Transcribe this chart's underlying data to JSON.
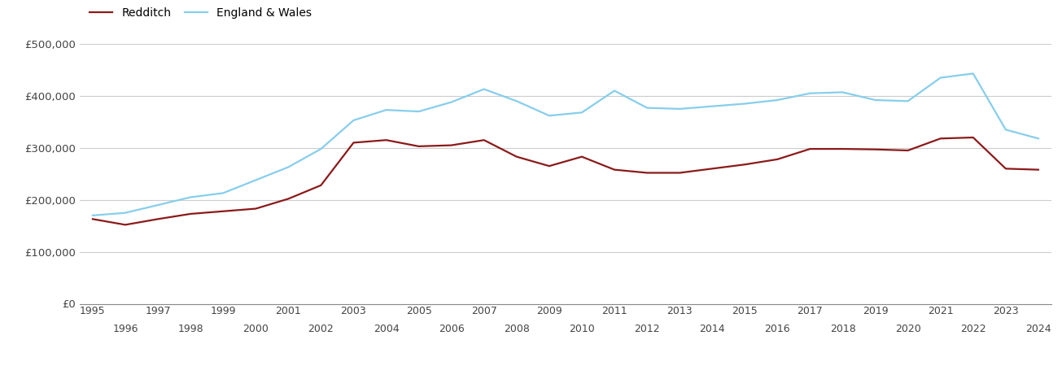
{
  "years": [
    1995,
    1996,
    1997,
    1998,
    1999,
    2000,
    2001,
    2002,
    2003,
    2004,
    2005,
    2006,
    2007,
    2008,
    2009,
    2010,
    2011,
    2012,
    2013,
    2014,
    2015,
    2016,
    2017,
    2018,
    2019,
    2020,
    2021,
    2022,
    2023,
    2024
  ],
  "redditch": [
    163000,
    152000,
    163000,
    173000,
    178000,
    183000,
    202000,
    228000,
    310000,
    315000,
    303000,
    305000,
    315000,
    283000,
    265000,
    283000,
    258000,
    252000,
    252000,
    260000,
    268000,
    278000,
    298000,
    298000,
    297000,
    295000,
    318000,
    320000,
    260000,
    258000
  ],
  "england_wales": [
    170000,
    175000,
    190000,
    205000,
    213000,
    238000,
    263000,
    298000,
    353000,
    373000,
    370000,
    388000,
    413000,
    390000,
    362000,
    368000,
    410000,
    377000,
    375000,
    380000,
    385000,
    392000,
    405000,
    407000,
    392000,
    390000,
    435000,
    443000,
    335000,
    318000
  ],
  "redditch_color": "#8B1A1A",
  "england_wales_color": "#87CEEB",
  "background_color": "#ffffff",
  "grid_color": "#cccccc",
  "ylim": [
    0,
    500000
  ],
  "yticks": [
    0,
    100000,
    200000,
    300000,
    400000,
    500000
  ],
  "ytick_labels": [
    "£0",
    "£100,000",
    "£200,000",
    "£300,000",
    "£400,000",
    "£500,000"
  ],
  "legend_redditch": "Redditch",
  "legend_england_wales": "England & Wales",
  "line_width": 1.6,
  "xlim_left": 1994.6,
  "xlim_right": 2024.4
}
